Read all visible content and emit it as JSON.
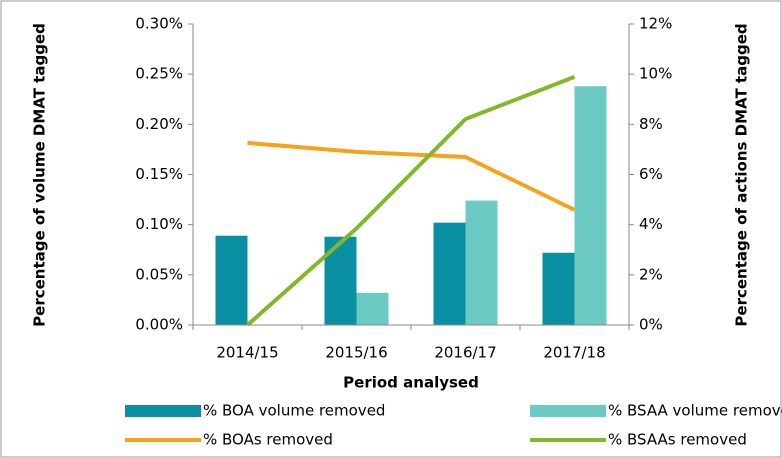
{
  "chart_data": {
    "type": "bar-line",
    "categories": [
      "2014/15",
      "2015/16",
      "2016/17",
      "2017/18"
    ],
    "xlabel": "Period analysed",
    "ylabel": "Percentage of volume DMAT tagged",
    "y2label": "Percentage of actions DMAT tagged",
    "ylim": [
      0,
      0.3
    ],
    "yticks": [
      {
        "value": 0,
        "label": "0.00%"
      },
      {
        "value": 0.05,
        "label": "0.05%"
      },
      {
        "value": 0.1,
        "label": "0.10%"
      },
      {
        "value": 0.15,
        "label": "0.15%"
      },
      {
        "value": 0.2,
        "label": "0.20%"
      },
      {
        "value": 0.25,
        "label": "0.25%"
      },
      {
        "value": 0.3,
        "label": "0.30%"
      }
    ],
    "y2lim": [
      0,
      12
    ],
    "y2ticks": [
      {
        "value": 0,
        "label": "0%"
      },
      {
        "value": 2,
        "label": "2%"
      },
      {
        "value": 4,
        "label": "4%"
      },
      {
        "value": 6,
        "label": "6%"
      },
      {
        "value": 8,
        "label": "8%"
      },
      {
        "value": 10,
        "label": "10%"
      },
      {
        "value": 12,
        "label": "12%"
      }
    ],
    "series": [
      {
        "name": "% BOA volume removed",
        "type": "bar",
        "color": "#0a8fa3",
        "values": [
          0.089,
          0.088,
          0.102,
          0.072
        ]
      },
      {
        "name": "% BSAA volume removed",
        "type": "bar",
        "color": "#6bcbc3",
        "values": [
          0,
          0.032,
          0.124,
          0.238
        ]
      },
      {
        "name": "% BOAs removed",
        "type": "line",
        "axis": "y2",
        "color": "#f7a21b",
        "values": [
          7.26,
          6.9,
          6.7,
          4.59
        ]
      },
      {
        "name": "% BSAAs removed",
        "type": "line",
        "axis": "y2",
        "color": "#7fb92a",
        "values": [
          0,
          3.85,
          8.21,
          9.89
        ]
      }
    ]
  }
}
